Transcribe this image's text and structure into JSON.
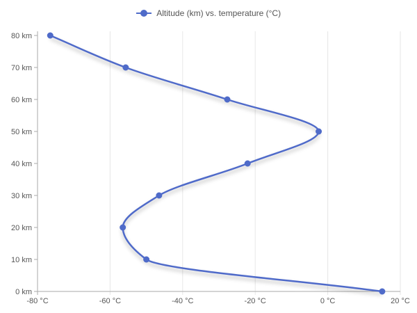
{
  "chart_data": {
    "type": "line",
    "title": "",
    "xlabel": "",
    "ylabel": "",
    "legend": "top-center",
    "grid": {
      "vertical": true,
      "horizontal": false
    },
    "xlim": [
      -80,
      20
    ],
    "ylim": [
      0,
      80
    ],
    "x_ticks": [
      -80,
      -60,
      -40,
      -20,
      0,
      20
    ],
    "x_tick_labels": [
      "-80 °C",
      "-60 °C",
      "-40 °C",
      "-20 °C",
      "0 °C",
      "20 °C"
    ],
    "y_ticks": [
      0,
      10,
      20,
      30,
      40,
      50,
      60,
      70,
      80
    ],
    "y_tick_labels": [
      "0 km",
      "10 km",
      "20 km",
      "30 km",
      "40 km",
      "50 km",
      "60 km",
      "70 km",
      "80 km"
    ],
    "series": [
      {
        "name": "Altitude (km) vs. temperature (°C)",
        "color": "#4f6bc9",
        "points": [
          {
            "temperature": 15,
            "altitude": 0
          },
          {
            "temperature": -50,
            "altitude": 10
          },
          {
            "temperature": -56.5,
            "altitude": 20
          },
          {
            "temperature": -46.5,
            "altitude": 30
          },
          {
            "temperature": -22.1,
            "altitude": 40
          },
          {
            "temperature": -2.5,
            "altitude": 50
          },
          {
            "temperature": -27.7,
            "altitude": 60
          },
          {
            "temperature": -55.7,
            "altitude": 70
          },
          {
            "temperature": -76.5,
            "altitude": 80
          }
        ]
      }
    ]
  }
}
